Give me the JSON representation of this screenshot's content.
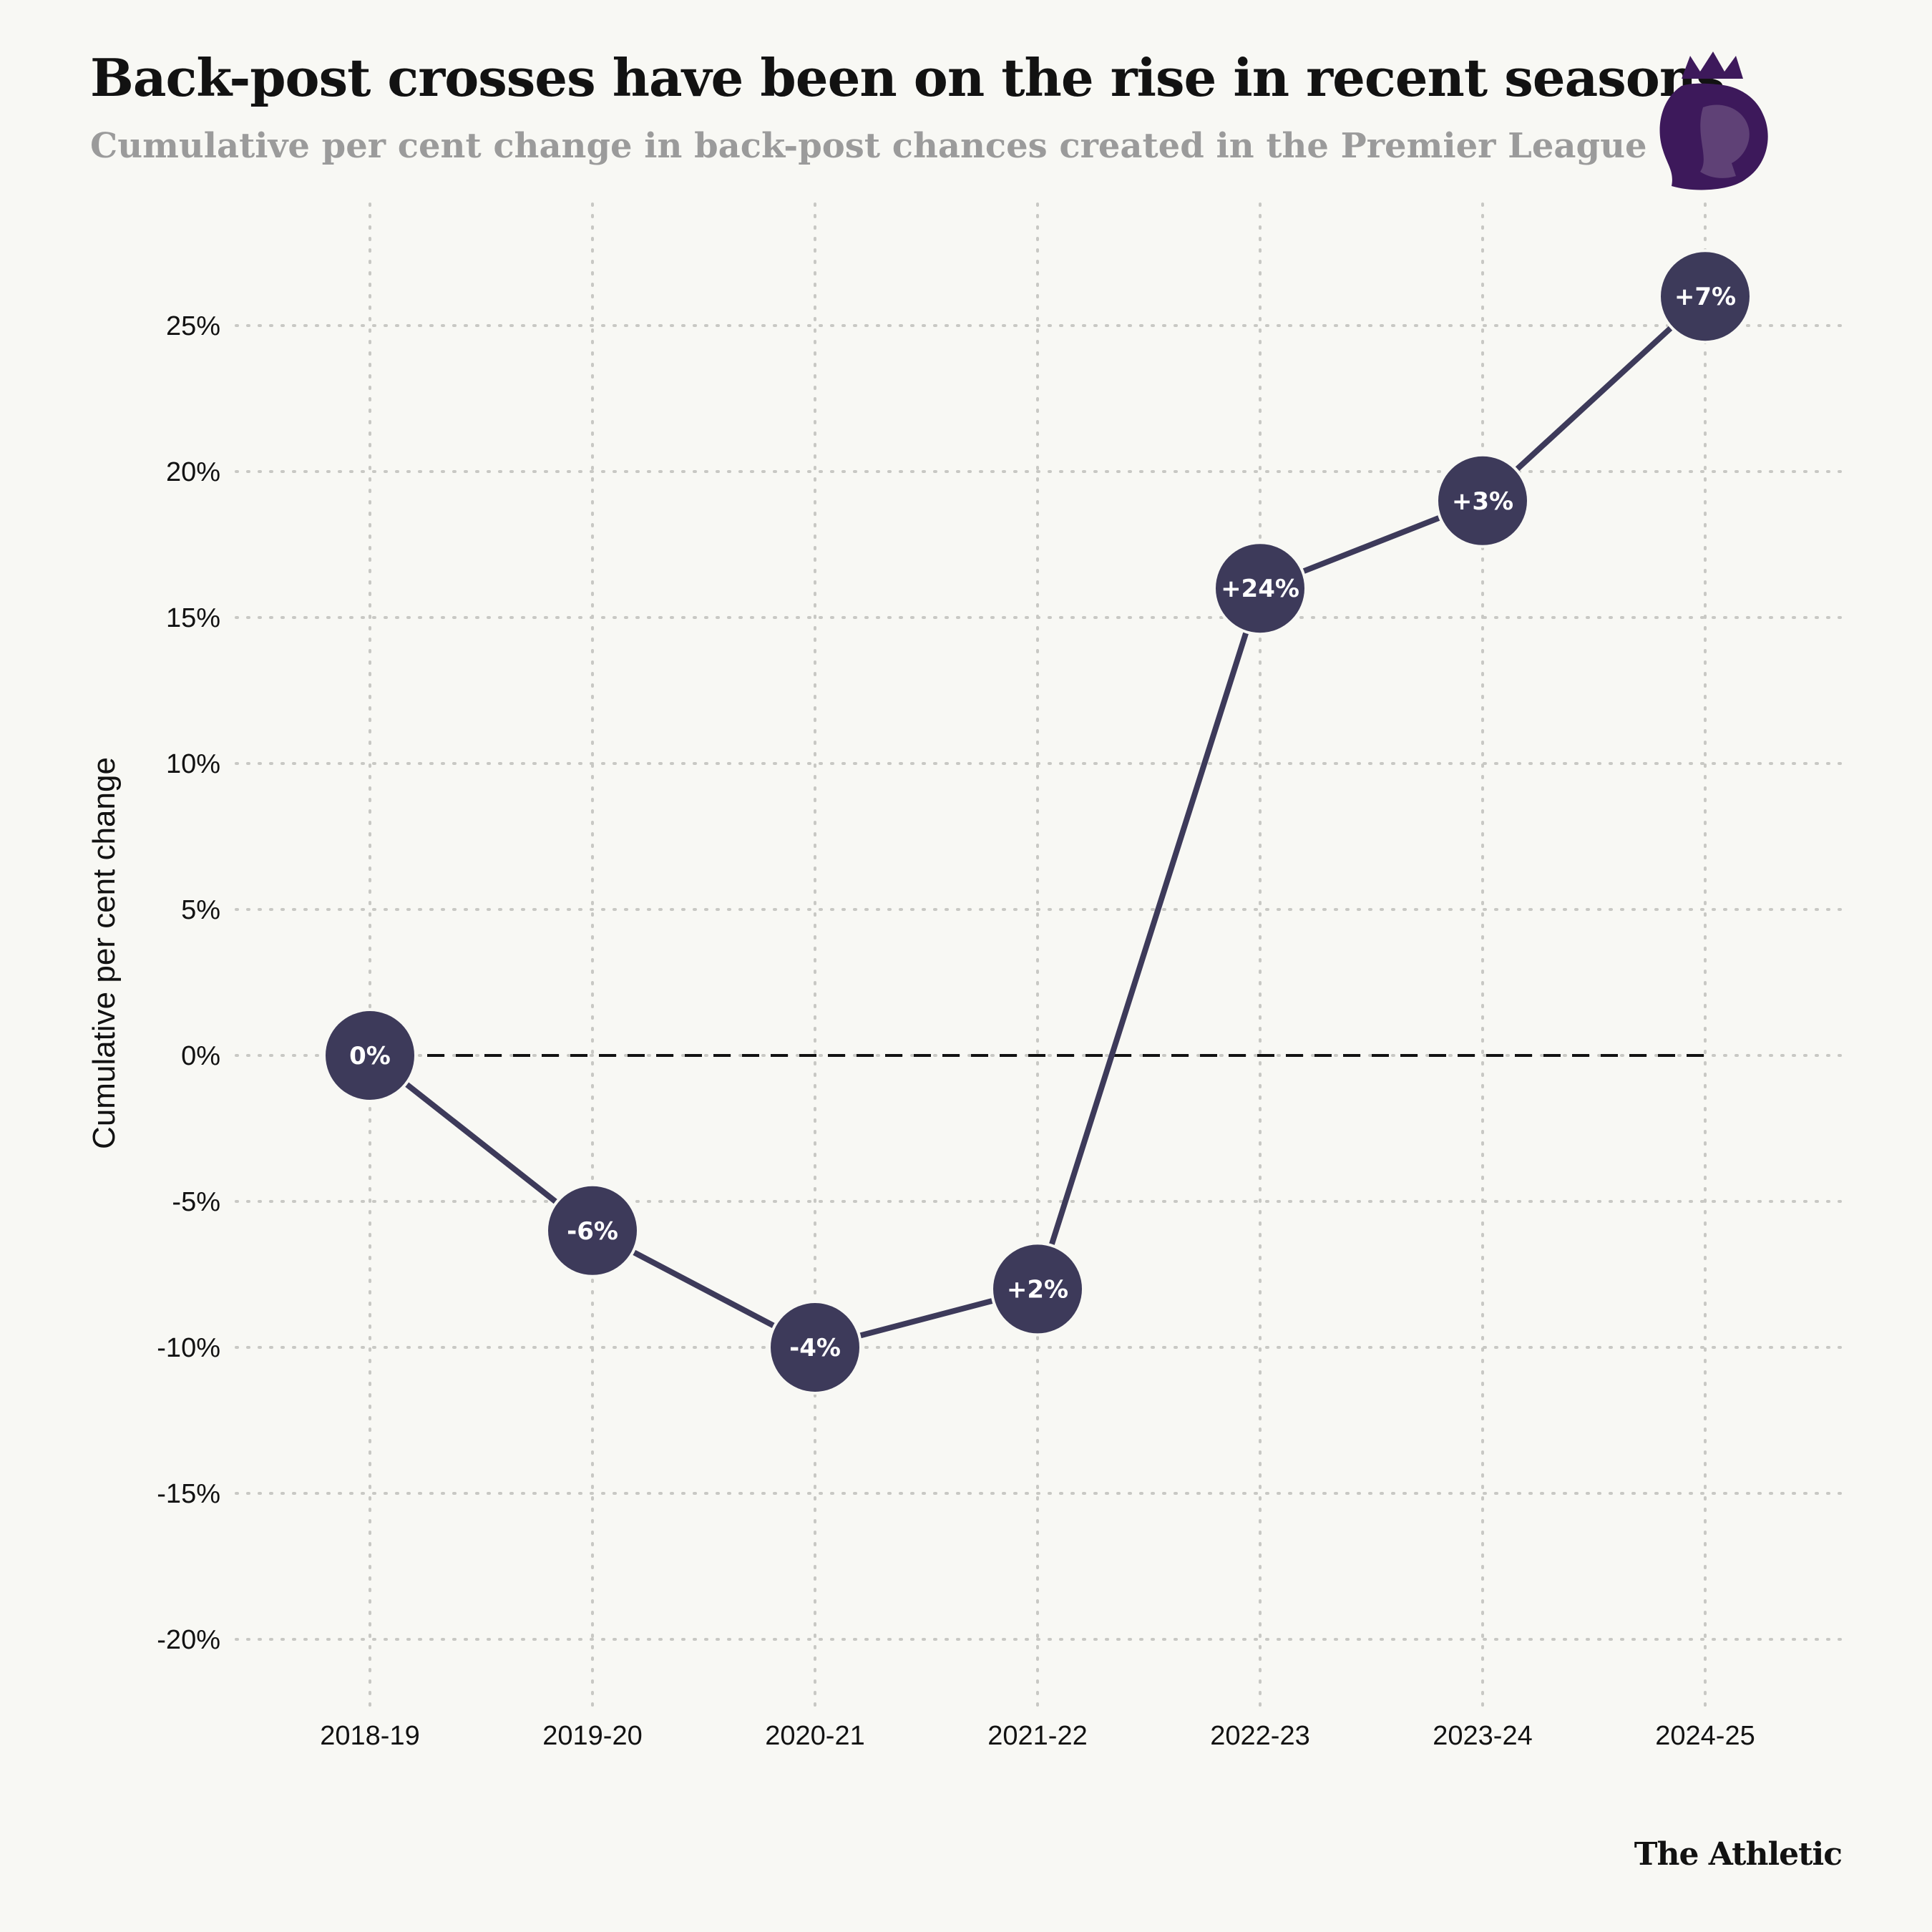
{
  "header": {
    "title": "Back-post crosses have been on the rise in recent seasons",
    "subtitle": "Cumulative per cent change in back-post chances created in the Premier League"
  },
  "logo": {
    "icon": "premier-league-lion-icon",
    "color": "#3d195b"
  },
  "brand": {
    "label": "The Athletic"
  },
  "colors": {
    "line": "#3d3a5a",
    "marker": "#3d3a5a",
    "grid": "#c8c8c4",
    "zero_line": "#121212",
    "background": "#f8f8f4"
  },
  "chart_data": {
    "type": "line",
    "title": "Back-post crosses have been on the rise in recent seasons",
    "subtitle": "Cumulative per cent change in back-post chances created in the Premier League",
    "xlabel": "",
    "ylabel": "Cumulative per cent change",
    "categories": [
      "2018-19",
      "2019-20",
      "2020-21",
      "2021-22",
      "2022-23",
      "2023-24",
      "2024-25"
    ],
    "series": [
      {
        "values": [
          0,
          -6,
          -10,
          -8,
          16,
          19,
          26
        ],
        "point_labels": [
          "0%",
          "-6%",
          "-4%",
          "+2%",
          "+24%",
          "+3%",
          "+7%"
        ]
      }
    ],
    "ylim": [
      -20,
      25
    ],
    "yticks": [
      25,
      20,
      15,
      10,
      5,
      0,
      -5,
      -10,
      -15,
      -20
    ],
    "ytick_labels": [
      "25%",
      "20%",
      "15%",
      "10%",
      "5%",
      "0%",
      "-5%",
      "-10%",
      "-15%",
      "-20%"
    ],
    "reference_line": {
      "y": 0,
      "style": "dashed"
    },
    "grid": true,
    "legend": "none"
  }
}
